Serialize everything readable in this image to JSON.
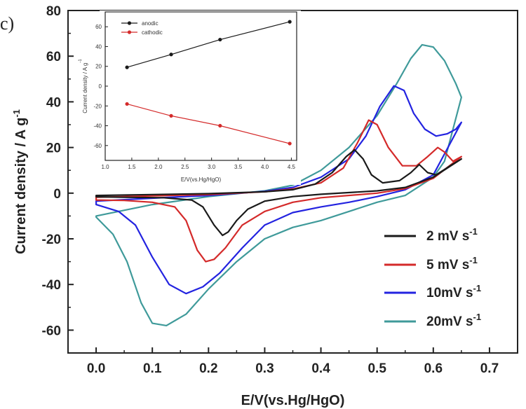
{
  "panel_label": "c)",
  "chart_data": [
    {
      "type": "line",
      "xlabel": "E/V(vs.Hg/HgO)",
      "ylabel": "Current density / A g",
      "ylabel_superscript": "-1",
      "xlim": [
        -0.05,
        0.75
      ],
      "ylim": [
        -70,
        80
      ],
      "x_ticks": [
        "0.0",
        "0.1",
        "0.2",
        "0.3",
        "0.4",
        "0.5",
        "0.6",
        "0.7"
      ],
      "y_ticks": [
        "-60",
        "-40",
        "-20",
        "0",
        "20",
        "40",
        "60",
        "80"
      ],
      "legend_position": "bottom-right",
      "series": [
        {
          "name": "2 mV s",
          "superscript": "-1",
          "color": "#1a1a1a",
          "anodic": [
            [
              0.0,
              -1.0
            ],
            [
              0.1,
              -0.6
            ],
            [
              0.2,
              -0.2
            ],
            [
              0.3,
              0.6
            ],
            [
              0.35,
              1.5
            ],
            [
              0.39,
              4.0
            ],
            [
              0.42,
              9.0
            ],
            [
              0.445,
              16.0
            ],
            [
              0.46,
              19.0
            ],
            [
              0.475,
              15.0
            ],
            [
              0.49,
              8.0
            ],
            [
              0.51,
              4.5
            ],
            [
              0.54,
              5.5
            ],
            [
              0.56,
              9.0
            ],
            [
              0.575,
              12.5
            ],
            [
              0.59,
              9.0
            ],
            [
              0.605,
              8.0
            ],
            [
              0.63,
              12.0
            ],
            [
              0.65,
              15.0
            ]
          ],
          "cathodic": [
            [
              0.65,
              15.0
            ],
            [
              0.6,
              7.0
            ],
            [
              0.55,
              2.5
            ],
            [
              0.5,
              1.0
            ],
            [
              0.4,
              -0.5
            ],
            [
              0.35,
              -1.5
            ],
            [
              0.3,
              -3.5
            ],
            [
              0.27,
              -7.0
            ],
            [
              0.25,
              -12.0
            ],
            [
              0.235,
              -17.0
            ],
            [
              0.225,
              -18.5
            ],
            [
              0.21,
              -14.0
            ],
            [
              0.19,
              -6.0
            ],
            [
              0.17,
              -3.0
            ],
            [
              0.12,
              -2.0
            ],
            [
              0.05,
              -1.8
            ],
            [
              0.0,
              -1.6
            ]
          ]
        },
        {
          "name": "5 mV s",
          "superscript": "-1",
          "color": "#d42a2a",
          "anodic": [
            [
              0.0,
              -1.8
            ],
            [
              0.1,
              -1.2
            ],
            [
              0.2,
              -0.6
            ],
            [
              0.3,
              0.6
            ],
            [
              0.35,
              1.8
            ],
            [
              0.4,
              4.5
            ],
            [
              0.44,
              11.0
            ],
            [
              0.465,
              22.0
            ],
            [
              0.485,
              32.0
            ],
            [
              0.5,
              30.0
            ],
            [
              0.52,
              20.0
            ],
            [
              0.545,
              12.0
            ],
            [
              0.57,
              12.0
            ],
            [
              0.59,
              16.0
            ],
            [
              0.608,
              20.0
            ],
            [
              0.62,
              18.0
            ],
            [
              0.635,
              14.0
            ],
            [
              0.65,
              16.0
            ]
          ],
          "cathodic": [
            [
              0.65,
              16.0
            ],
            [
              0.6,
              6.5
            ],
            [
              0.55,
              2.0
            ],
            [
              0.5,
              0.0
            ],
            [
              0.4,
              -2.0
            ],
            [
              0.35,
              -4.0
            ],
            [
              0.3,
              -8.0
            ],
            [
              0.26,
              -14.0
            ],
            [
              0.23,
              -24.0
            ],
            [
              0.21,
              -29.0
            ],
            [
              0.195,
              -30.0
            ],
            [
              0.18,
              -25.0
            ],
            [
              0.16,
              -12.0
            ],
            [
              0.14,
              -6.0
            ],
            [
              0.1,
              -4.0
            ],
            [
              0.05,
              -3.2
            ],
            [
              0.0,
              -3.0
            ]
          ]
        },
        {
          "name": "10mV s",
          "superscript": "-1",
          "color": "#2323e0",
          "anodic": [
            [
              0.0,
              -3.5
            ],
            [
              0.1,
              -2.2
            ],
            [
              0.2,
              -1.0
            ],
            [
              0.3,
              0.8
            ],
            [
              0.35,
              2.5
            ],
            [
              0.4,
              7.0
            ],
            [
              0.45,
              15.0
            ],
            [
              0.48,
              25.0
            ],
            [
              0.505,
              38.0
            ],
            [
              0.53,
              47.0
            ],
            [
              0.548,
              45.0
            ],
            [
              0.565,
              35.0
            ],
            [
              0.585,
              28.0
            ],
            [
              0.605,
              25.0
            ],
            [
              0.625,
              26.0
            ],
            [
              0.64,
              28.0
            ],
            [
              0.65,
              31.0
            ]
          ],
          "cathodic": [
            [
              0.65,
              31.0
            ],
            [
              0.6,
              8.0
            ],
            [
              0.55,
              1.5
            ],
            [
              0.5,
              -1.5
            ],
            [
              0.45,
              -4.0
            ],
            [
              0.4,
              -6.0
            ],
            [
              0.35,
              -8.5
            ],
            [
              0.3,
              -14.0
            ],
            [
              0.26,
              -24.0
            ],
            [
              0.22,
              -35.0
            ],
            [
              0.19,
              -41.0
            ],
            [
              0.16,
              -44.0
            ],
            [
              0.13,
              -40.0
            ],
            [
              0.1,
              -28.0
            ],
            [
              0.07,
              -14.0
            ],
            [
              0.04,
              -8.0
            ],
            [
              0.0,
              -5.0
            ]
          ]
        },
        {
          "name": "20mV s",
          "superscript": "-1",
          "color": "#3f9a9a",
          "anodic": [
            [
              0.0,
              -10.0
            ],
            [
              0.1,
              -5.0
            ],
            [
              0.2,
              -1.5
            ],
            [
              0.3,
              1.0
            ],
            [
              0.35,
              3.5
            ],
            [
              0.4,
              10.0
            ],
            [
              0.45,
              20.0
            ],
            [
              0.5,
              34.0
            ],
            [
              0.535,
              48.0
            ],
            [
              0.56,
              59.0
            ],
            [
              0.58,
              65.0
            ],
            [
              0.6,
              64.0
            ],
            [
              0.62,
              58.0
            ],
            [
              0.64,
              48.0
            ],
            [
              0.65,
              42.0
            ]
          ],
          "cathodic": [
            [
              0.65,
              42.0
            ],
            [
              0.62,
              14.0
            ],
            [
              0.6,
              7.0
            ],
            [
              0.55,
              -1.0
            ],
            [
              0.5,
              -4.0
            ],
            [
              0.45,
              -8.0
            ],
            [
              0.4,
              -12.0
            ],
            [
              0.35,
              -15.0
            ],
            [
              0.3,
              -20.0
            ],
            [
              0.25,
              -30.0
            ],
            [
              0.2,
              -42.0
            ],
            [
              0.16,
              -53.0
            ],
            [
              0.125,
              -58.0
            ],
            [
              0.1,
              -57.0
            ],
            [
              0.08,
              -48.0
            ],
            [
              0.055,
              -30.0
            ],
            [
              0.03,
              -18.0
            ],
            [
              0.0,
              -10.5
            ]
          ]
        }
      ]
    },
    {
      "type": "line",
      "inset": true,
      "xlabel": "E/V(vs.Hg/HgO)",
      "ylabel": "Current density / A g",
      "ylabel_superscript": "-1",
      "xlim": [
        1.0,
        4.6
      ],
      "ylim": [
        -75,
        75
      ],
      "x_ticks": [
        "1.0",
        "1.5",
        "2.0",
        "2.5",
        "3.0",
        "3.5",
        "4.0",
        "4.5"
      ],
      "y_ticks": [
        "-60",
        "-40",
        "-20",
        "0",
        "20",
        "40",
        "60"
      ],
      "legend_position": "top-left",
      "series": [
        {
          "name": "anodic",
          "color": "#1a1a1a",
          "x": [
            1.41,
            2.24,
            3.16,
            4.47
          ],
          "y": [
            19.0,
            32.0,
            47.0,
            65.0
          ]
        },
        {
          "name": "cathodic",
          "color": "#d42a2a",
          "x": [
            1.41,
            2.24,
            3.16,
            4.47
          ],
          "y": [
            -18.0,
            -30.0,
            -40.0,
            -58.0
          ]
        }
      ]
    }
  ]
}
